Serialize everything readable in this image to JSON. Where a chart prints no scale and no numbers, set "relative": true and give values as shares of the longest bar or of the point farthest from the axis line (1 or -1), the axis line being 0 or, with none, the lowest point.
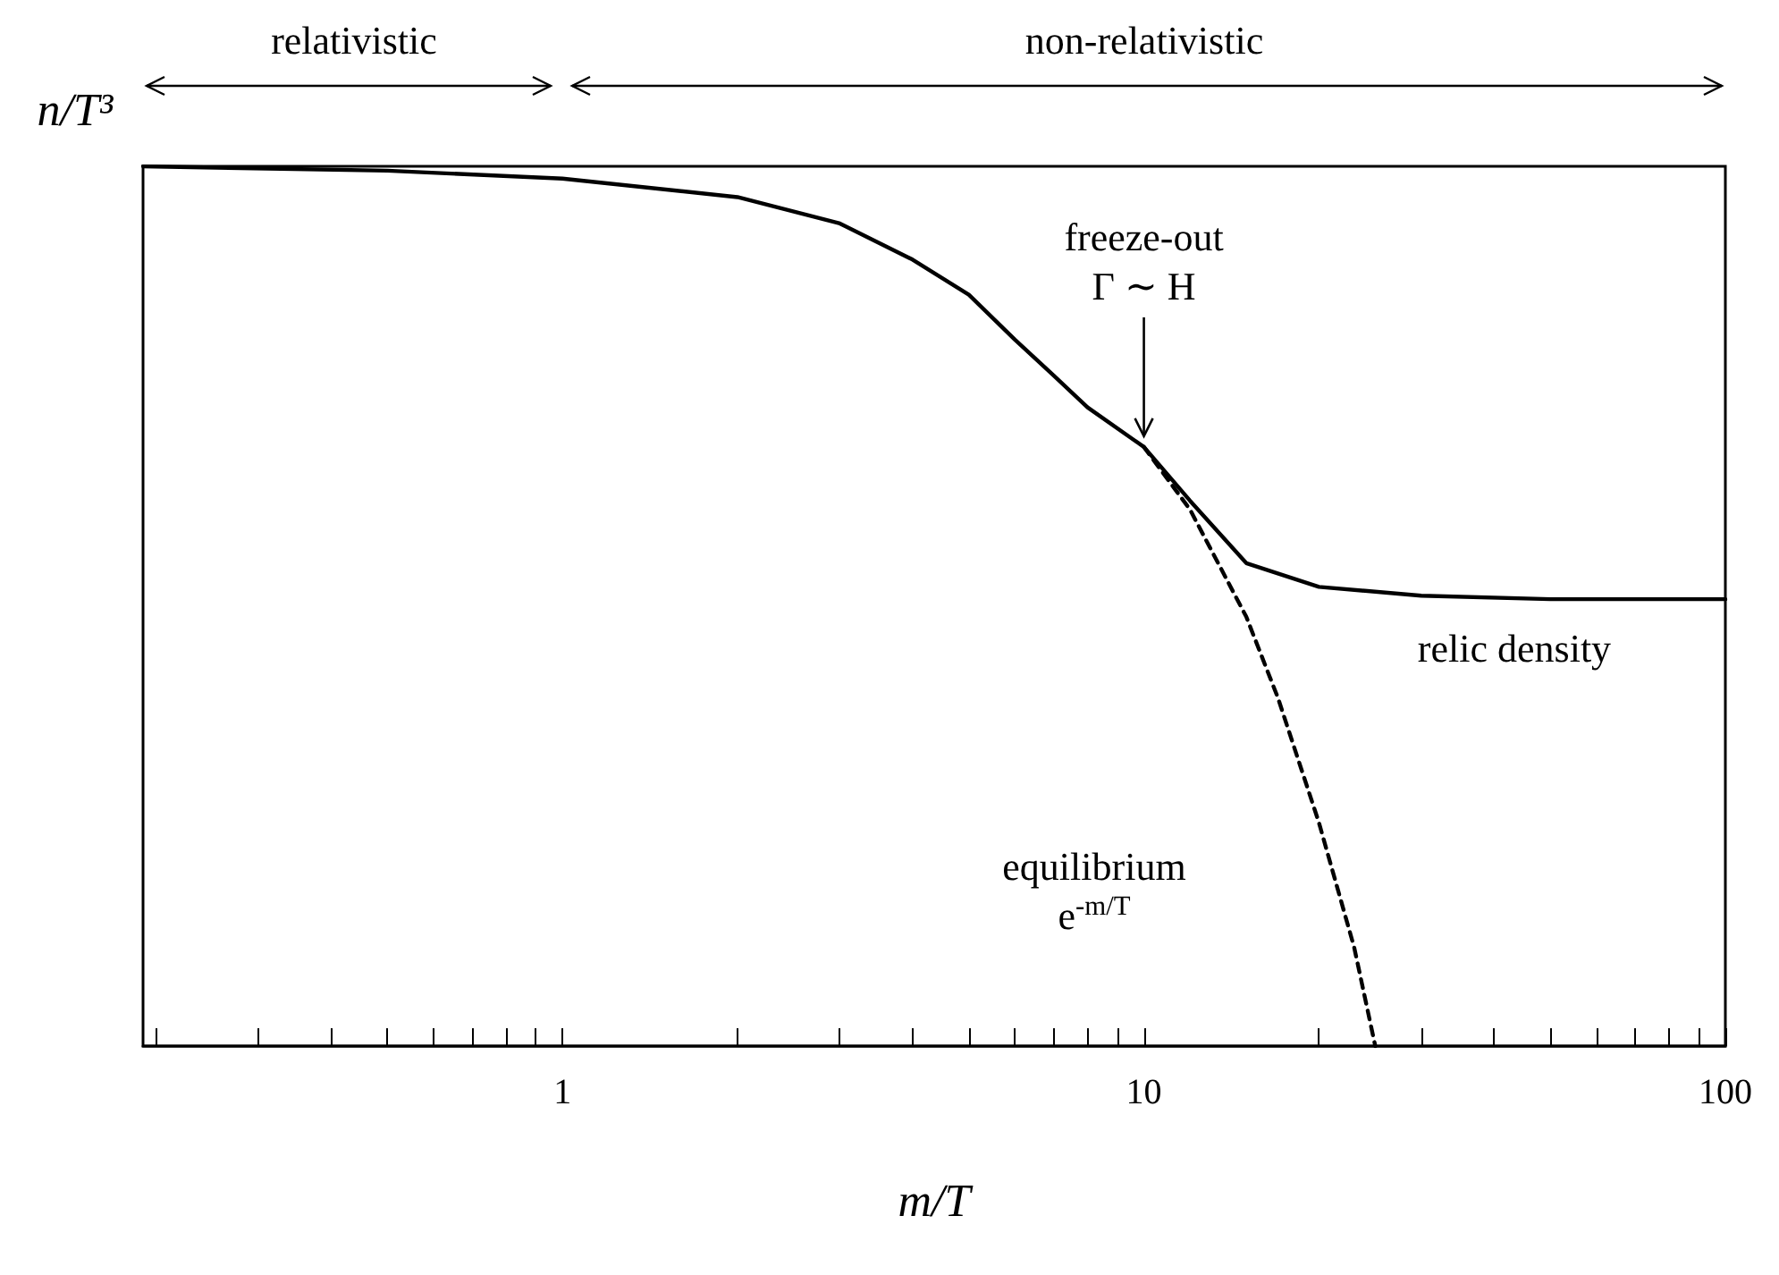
{
  "chart_data": {
    "type": "line",
    "relative": true,
    "log": "x",
    "xlabel": "m/T",
    "ylabel": "n/T³",
    "xlim": [
      0.19,
      100
    ],
    "xticks": [
      {
        "value": 0.2,
        "label": null
      },
      {
        "value": 0.3,
        "label": null
      },
      {
        "value": 0.4,
        "label": null
      },
      {
        "value": 0.5,
        "label": null
      },
      {
        "value": 0.6,
        "label": null
      },
      {
        "value": 0.7,
        "label": null
      },
      {
        "value": 0.8,
        "label": null
      },
      {
        "value": 0.9,
        "label": null
      },
      1,
      {
        "value": 2,
        "label": null
      },
      {
        "value": 3,
        "label": null
      },
      {
        "value": 4,
        "label": null
      },
      {
        "value": 5,
        "label": null
      },
      {
        "value": 6,
        "label": null
      },
      {
        "value": 7,
        "label": null
      },
      {
        "value": 8,
        "label": null
      },
      {
        "value": 9,
        "label": null
      },
      10,
      {
        "value": 20,
        "label": null
      },
      {
        "value": 30,
        "label": null
      },
      {
        "value": 40,
        "label": null
      },
      {
        "value": 50,
        "label": null
      },
      {
        "value": 60,
        "label": null
      },
      {
        "value": 70,
        "label": null
      },
      {
        "value": 80,
        "label": null
      },
      {
        "value": 90,
        "label": null
      },
      100
    ],
    "grid": false,
    "marker": "none",
    "series": [
      {
        "color": "#000000",
        "line_style": "solid",
        "x": [
          0.19,
          0.5,
          1,
          2,
          3,
          4,
          5,
          6,
          7,
          8,
          10,
          12,
          15,
          20,
          30,
          50,
          100
        ],
        "values": [
          1.0,
          0.995,
          0.986,
          0.965,
          0.935,
          0.894,
          0.854,
          0.803,
          0.762,
          0.726,
          0.681,
          0.62,
          0.549,
          0.522,
          0.512,
          0.508,
          0.508
        ]
      },
      {
        "color": "#000000",
        "line_style": "dashed",
        "x": [
          10,
          12,
          15,
          17,
          20,
          23,
          25
        ],
        "values": [
          0.681,
          0.61,
          0.488,
          0.396,
          0.254,
          0.112,
          0
        ]
      }
    ],
    "annotations": [
      "relativistic",
      "non-relativistic",
      {
        "text": "freeze-out\nΓ ∼ H",
        "x": 10,
        "y": 0.681
      },
      "relic density",
      "equilibrium\ne$^{-m/T}$"
    ]
  }
}
